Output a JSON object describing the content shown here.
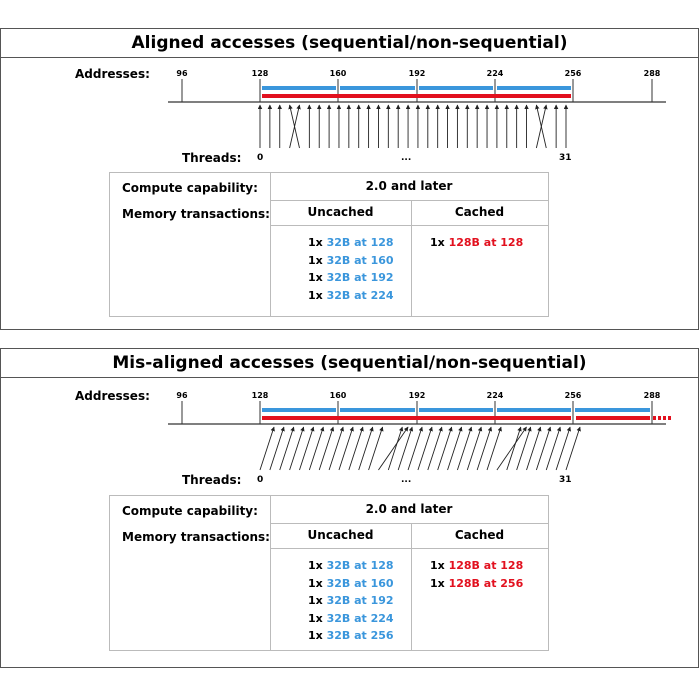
{
  "colors": {
    "segment_blue": "#3a96dc",
    "segment_red": "#e2101e",
    "line": "#333333"
  },
  "addresses_label": "Addresses:",
  "threads_label": "Threads:",
  "address_ticks": [
    "96",
    "128",
    "160",
    "192",
    "224",
    "256",
    "288"
  ],
  "thread_labels": {
    "first": "0",
    "middle": "...",
    "last": "31"
  },
  "aligned": {
    "title": "Aligned accesses (sequential/non-sequential)",
    "table": {
      "compute_label": "Compute capability:",
      "memory_label": "Memory transactions:",
      "compute_value": "2.0 and later",
      "uncached_header": "Uncached",
      "cached_header": "Cached",
      "uncached": [
        {
          "count": "1x",
          "desc": "32B at 128"
        },
        {
          "count": "1x",
          "desc": "32B at 160"
        },
        {
          "count": "1x",
          "desc": "32B at 192"
        },
        {
          "count": "1x",
          "desc": "32B at 224"
        }
      ],
      "cached": [
        {
          "count": "1x",
          "desc": "128B at 128"
        }
      ]
    }
  },
  "misaligned": {
    "title": "Mis-aligned accesses (sequential/non-sequential)",
    "table": {
      "compute_label": "Compute capability:",
      "memory_label": "Memory transactions:",
      "compute_value": "2.0 and later",
      "uncached_header": "Uncached",
      "cached_header": "Cached",
      "uncached": [
        {
          "count": "1x",
          "desc": "32B at 128"
        },
        {
          "count": "1x",
          "desc": "32B at 160"
        },
        {
          "count": "1x",
          "desc": "32B at 192"
        },
        {
          "count": "1x",
          "desc": "32B at 224"
        },
        {
          "count": "1x",
          "desc": "32B at 256"
        }
      ],
      "cached": [
        {
          "count": "1x",
          "desc": "128B at 128"
        },
        {
          "count": "1x",
          "desc": "128B at 256"
        }
      ]
    }
  }
}
